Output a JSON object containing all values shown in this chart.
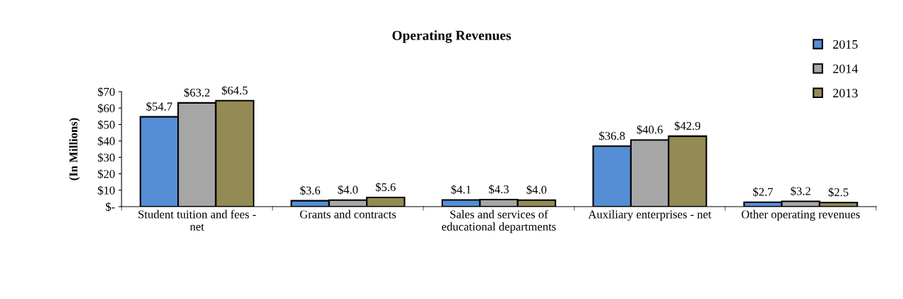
{
  "chart_data": {
    "type": "bar",
    "title": "Operating Revenues",
    "ylabel": "(In Millions)",
    "categories": [
      "Student tuition and fees -\nnet",
      "Grants and contracts",
      "Sales and services of\neducational departments",
      "Auxiliary enterprises - net",
      "Other operating revenues"
    ],
    "series": [
      {
        "name": "2015",
        "color": "#558ed5",
        "values": [
          54.7,
          3.6,
          4.1,
          36.8,
          2.7
        ],
        "value_labels": [
          "$54.7",
          "$3.6",
          "$4.1",
          "$36.8",
          "$2.7"
        ]
      },
      {
        "name": "2014",
        "color": "#a6a6a6",
        "values": [
          63.2,
          4.0,
          4.3,
          40.6,
          3.2
        ],
        "value_labels": [
          "$63.2",
          "$4.0",
          "$4.3",
          "$40.6",
          "$3.2"
        ]
      },
      {
        "name": "2013",
        "color": "#948a54",
        "values": [
          64.5,
          5.6,
          4.0,
          42.9,
          2.5
        ],
        "value_labels": [
          "$64.5",
          "$5.6",
          "$4.0",
          "$42.9",
          "$2.5"
        ]
      }
    ],
    "ylim": [
      0,
      70
    ],
    "yticks": [
      {
        "value": 0,
        "label": "$-"
      },
      {
        "value": 10,
        "label": "$10"
      },
      {
        "value": 20,
        "label": "$20"
      },
      {
        "value": 30,
        "label": "$30"
      },
      {
        "value": 40,
        "label": "$40"
      },
      {
        "value": 50,
        "label": "$50"
      },
      {
        "value": 60,
        "label": "$60"
      },
      {
        "value": 70,
        "label": "$70"
      }
    ],
    "grid": false,
    "legend": "top right"
  }
}
